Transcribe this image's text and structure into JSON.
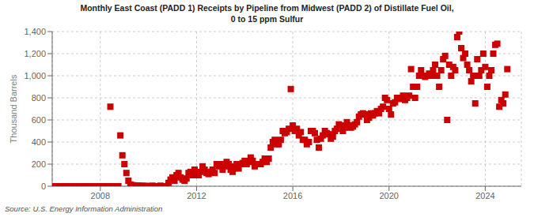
{
  "chart_data": {
    "type": "scatter",
    "title": "Monthly East Coast (PADD 1) Receipts by Pipeline from Midwest (PADD 2) of Distillate Fuel Oil,\n0 to 15 ppm Sulfur",
    "y_label": "Thousand Barrels",
    "annotations": [
      "Source: U.S. Energy Information Administration"
    ],
    "color": "#cc0000",
    "marker": "square",
    "grid": true,
    "xlim": [
      2006.0,
      2025.5
    ],
    "xticks": [
      2008,
      2012,
      2016,
      2020,
      2024
    ],
    "ylim": [
      0,
      1400
    ],
    "yticks": [
      0,
      200,
      400,
      600,
      800,
      {
        "value": 1000,
        "label": "1,000"
      },
      {
        "value": 1200,
        "label": "1,200"
      },
      {
        "value": 1400,
        "label": "1,400"
      }
    ],
    "x": [
      2006.0,
      2006.083,
      2006.167,
      2006.25,
      2006.333,
      2006.417,
      2006.5,
      2006.583,
      2006.667,
      2006.75,
      2006.833,
      2006.917,
      2007.0,
      2007.083,
      2007.167,
      2007.25,
      2007.333,
      2007.417,
      2007.5,
      2007.583,
      2007.667,
      2007.75,
      2007.833,
      2007.917,
      2008.0,
      2008.083,
      2008.167,
      2008.25,
      2008.333,
      2008.417,
      2008.5,
      2008.583,
      2008.667,
      2008.75,
      2008.833,
      2008.917,
      2009.0,
      2009.083,
      2009.167,
      2009.25,
      2009.333,
      2009.417,
      2009.5,
      2009.583,
      2009.667,
      2009.75,
      2009.833,
      2009.917,
      2010.0,
      2010.083,
      2010.167,
      2010.25,
      2010.333,
      2010.417,
      2010.5,
      2010.583,
      2010.667,
      2010.75,
      2010.833,
      2010.917,
      2011.0,
      2011.083,
      2011.167,
      2011.25,
      2011.333,
      2011.417,
      2011.5,
      2011.583,
      2011.667,
      2011.75,
      2011.833,
      2011.917,
      2012.0,
      2012.083,
      2012.167,
      2012.25,
      2012.333,
      2012.417,
      2012.5,
      2012.583,
      2012.667,
      2012.75,
      2012.833,
      2012.917,
      2013.0,
      2013.083,
      2013.167,
      2013.25,
      2013.333,
      2013.417,
      2013.5,
      2013.583,
      2013.667,
      2013.75,
      2013.833,
      2013.917,
      2014.0,
      2014.083,
      2014.167,
      2014.25,
      2014.333,
      2014.417,
      2014.5,
      2014.583,
      2014.667,
      2014.75,
      2014.833,
      2014.917,
      2015.0,
      2015.083,
      2015.167,
      2015.25,
      2015.333,
      2015.417,
      2015.5,
      2015.583,
      2015.667,
      2015.75,
      2015.833,
      2015.917,
      2016.0,
      2016.083,
      2016.167,
      2016.25,
      2016.333,
      2016.417,
      2016.5,
      2016.583,
      2016.667,
      2016.75,
      2016.833,
      2016.917,
      2017.0,
      2017.083,
      2017.167,
      2017.25,
      2017.333,
      2017.417,
      2017.5,
      2017.583,
      2017.667,
      2017.75,
      2017.833,
      2017.917,
      2018.0,
      2018.083,
      2018.167,
      2018.25,
      2018.333,
      2018.417,
      2018.5,
      2018.583,
      2018.667,
      2018.75,
      2018.833,
      2018.917,
      2019.0,
      2019.083,
      2019.167,
      2019.25,
      2019.333,
      2019.417,
      2019.5,
      2019.583,
      2019.667,
      2019.75,
      2019.833,
      2019.917,
      2020.0,
      2020.083,
      2020.167,
      2020.25,
      2020.333,
      2020.417,
      2020.5,
      2020.583,
      2020.667,
      2020.75,
      2020.833,
      2020.917,
      2021.0,
      2021.083,
      2021.167,
      2021.25,
      2021.333,
      2021.417,
      2021.5,
      2021.583,
      2021.667,
      2021.75,
      2021.833,
      2021.917,
      2022.0,
      2022.083,
      2022.167,
      2022.25,
      2022.333,
      2022.417,
      2022.5,
      2022.583,
      2022.667,
      2022.75,
      2022.833,
      2022.917,
      2023.0,
      2023.083,
      2023.167,
      2023.25,
      2023.333,
      2023.417,
      2023.5,
      2023.583,
      2023.667,
      2023.75,
      2023.833,
      2023.917,
      2024.0,
      2024.083,
      2024.167,
      2024.25,
      2024.333,
      2024.417,
      2024.5,
      2024.583,
      2024.667,
      2024.75,
      2024.833,
      2024.917
    ],
    "values": [
      0,
      0,
      0,
      0,
      0,
      0,
      0,
      0,
      0,
      0,
      0,
      0,
      0,
      0,
      0,
      0,
      0,
      0,
      0,
      0,
      0,
      0,
      0,
      0,
      0,
      0,
      0,
      0,
      0,
      720,
      0,
      0,
      0,
      0,
      460,
      280,
      200,
      120,
      50,
      15,
      10,
      5,
      5,
      5,
      3,
      3,
      2,
      3,
      0,
      0,
      5,
      0,
      0,
      0,
      5,
      0,
      0,
      0,
      30,
      60,
      80,
      50,
      100,
      120,
      80,
      60,
      50,
      70,
      120,
      130,
      100,
      150,
      120,
      100,
      130,
      180,
      150,
      120,
      110,
      130,
      150,
      120,
      200,
      180,
      200,
      150,
      180,
      220,
      200,
      150,
      130,
      180,
      200,
      160,
      200,
      210,
      230,
      200,
      220,
      260,
      230,
      180,
      200,
      200,
      200,
      220,
      250,
      220,
      250,
      350,
      400,
      420,
      380,
      380,
      420,
      500,
      480,
      490,
      520,
      880,
      550,
      500,
      520,
      460,
      490,
      420,
      420,
      380,
      400,
      500,
      500,
      480,
      420,
      350,
      430,
      460,
      500,
      480,
      470,
      430,
      450,
      500,
      520,
      560,
      550,
      500,
      530,
      580,
      550,
      530,
      540,
      560,
      580,
      630,
      650,
      660,
      650,
      600,
      620,
      660,
      640,
      660,
      680,
      660,
      700,
      720,
      800,
      780,
      700,
      650,
      750,
      760,
      800,
      800,
      790,
      820,
      780,
      800,
      820,
      1060,
      900,
      800,
      900,
      1000,
      1050,
      1000,
      990,
      1000,
      1020,
      1000,
      1050,
      1100,
      1000,
      900,
      1050,
      1150,
      1180,
      600,
      1100,
      1000,
      1080,
      1050,
      1350,
      1400,
      1250,
      1160,
      1200,
      1100,
      1050,
      950,
      1000,
      750,
      1150,
      1000,
      1050,
      1200,
      1080,
      900,
      1000,
      1050,
      1200,
      1280,
      1290,
      720,
      780,
      750,
      830,
      1060
    ]
  }
}
